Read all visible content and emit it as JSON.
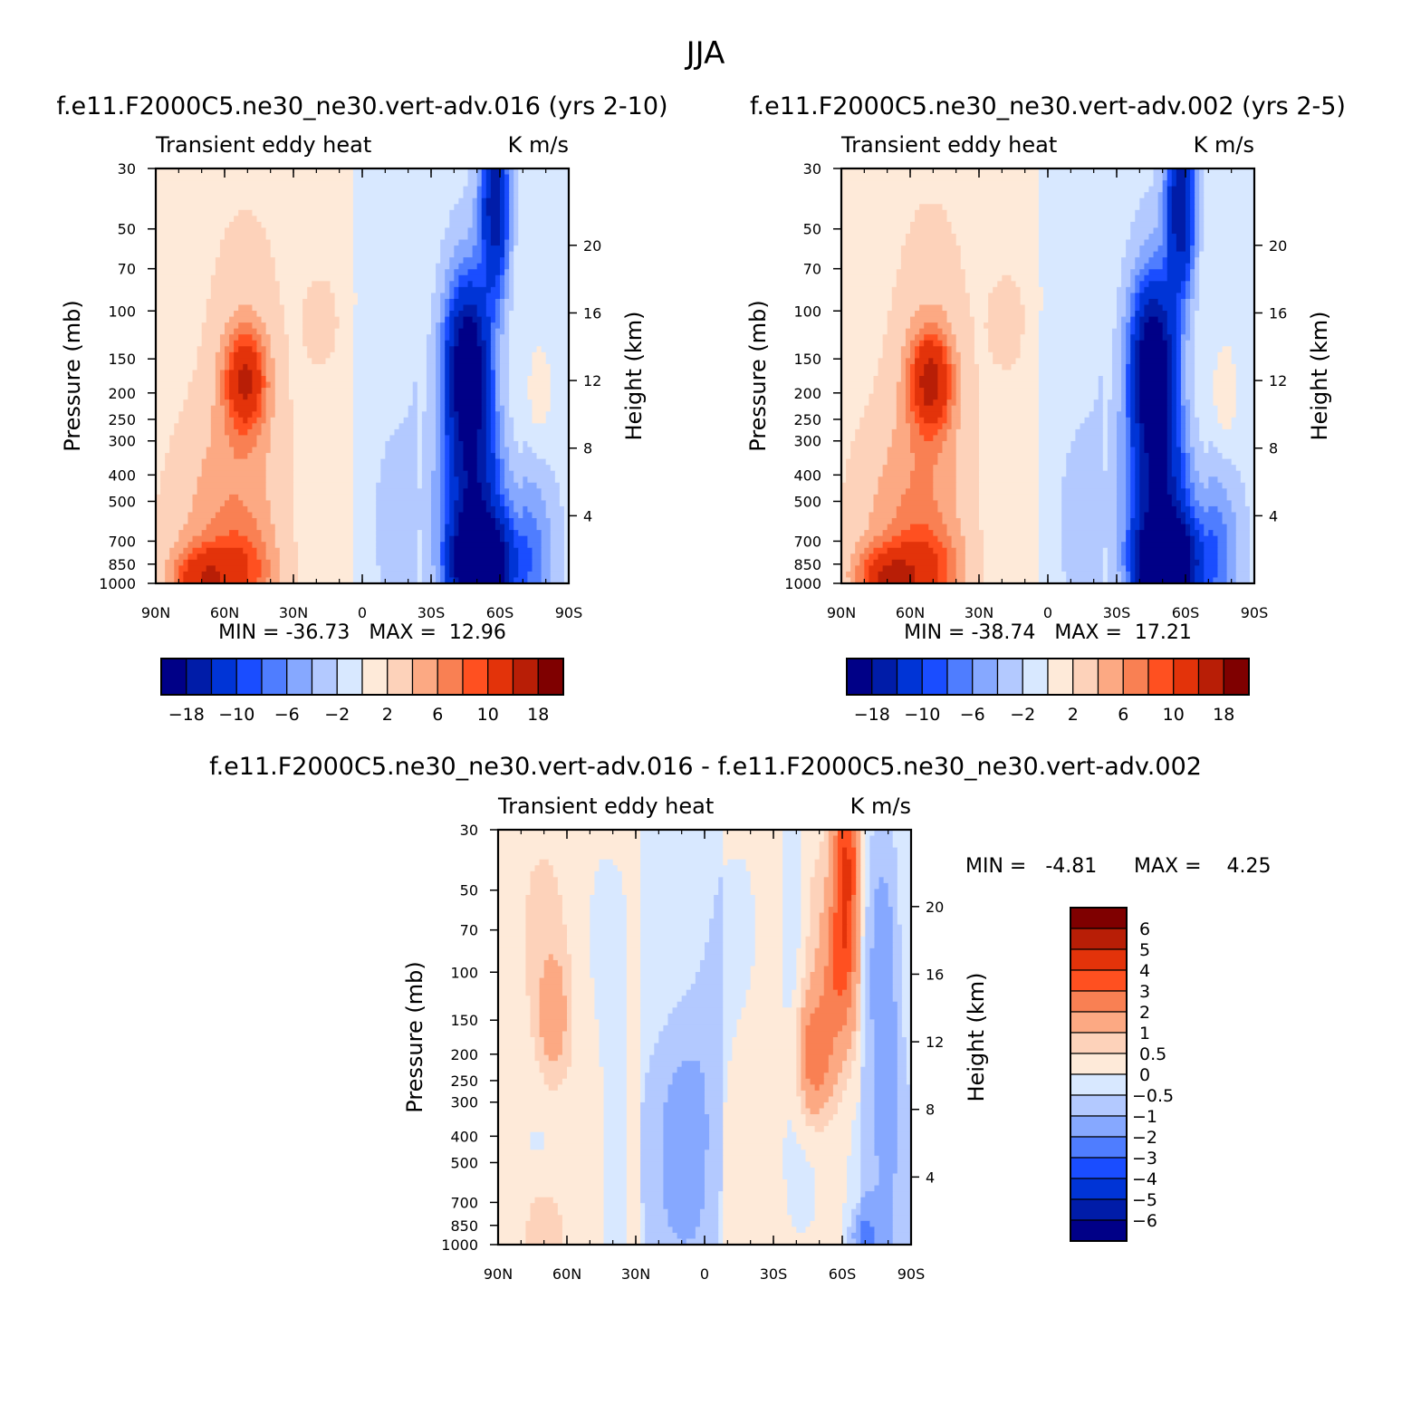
{
  "figure": {
    "season": "JJA",
    "units": "K m/s",
    "variable_label": "Transient eddy heat",
    "ylabel": "Pressure (mb)",
    "y2label": "Height (km)"
  },
  "colors": {
    "abs_palette": [
      "#000087",
      "#001ca8",
      "#0034d6",
      "#1a4dff",
      "#4f7dff",
      "#86a8ff",
      "#b3c9ff",
      "#d8e8ff",
      "#feead9",
      "#fdd2ba",
      "#fca983",
      "#f98053",
      "#ff5020",
      "#e3330a",
      "#b81e06",
      "#7f0000"
    ],
    "diff_palette": [
      "#000087",
      "#001ca8",
      "#0034d6",
      "#1a4dff",
      "#4f7dff",
      "#86a8ff",
      "#b3c9ff",
      "#d8e8ff",
      "#feead9",
      "#fdd2ba",
      "#fca983",
      "#f98053",
      "#ff5020",
      "#e3330a",
      "#b81e06",
      "#7f0000"
    ]
  },
  "chart_data": [
    {
      "type": "heatmap",
      "id": "panel1",
      "title": "f.e11.F2000C5.ne30_ne30.vert-adv.016 (yrs 2-10)",
      "left_label": "Transient eddy heat",
      "right_label": "K m/s",
      "ylabel": "Pressure (mb)",
      "y2label": "Height (km)",
      "x_ticks": [
        "90N",
        "60N",
        "30N",
        "0",
        "30S",
        "60S",
        "90S"
      ],
      "y_ticks": [
        30,
        50,
        70,
        100,
        150,
        200,
        250,
        300,
        400,
        500,
        700,
        850,
        1000
      ],
      "y2_ticks": [
        4,
        8,
        12,
        16,
        20
      ],
      "xlim": [
        90,
        -90
      ],
      "ylim": [
        1000,
        30
      ],
      "y_scale": "log",
      "stats": "MIN = -36.73   MAX =  12.96",
      "min": -36.73,
      "max": 12.96,
      "levels": [
        -30,
        -18,
        -14,
        -10,
        -8,
        -6,
        -4,
        -2,
        0,
        2,
        4,
        6,
        8,
        10,
        14,
        18,
        30
      ],
      "colorbar_labels": [
        "-18",
        "-10",
        "-6",
        "-2",
        "2",
        "6",
        "10",
        "18"
      ]
    },
    {
      "type": "heatmap",
      "id": "panel2",
      "title": "f.e11.F2000C5.ne30_ne30.vert-adv.002 (yrs 2-5)",
      "left_label": "Transient eddy heat",
      "right_label": "K m/s",
      "ylabel": "Pressure (mb)",
      "y2label": "Height (km)",
      "x_ticks": [
        "90N",
        "60N",
        "30N",
        "0",
        "30S",
        "60S",
        "90S"
      ],
      "y_ticks": [
        30,
        50,
        70,
        100,
        150,
        200,
        250,
        300,
        400,
        500,
        700,
        850,
        1000
      ],
      "y2_ticks": [
        4,
        8,
        12,
        16,
        20
      ],
      "xlim": [
        90,
        -90
      ],
      "ylim": [
        1000,
        30
      ],
      "y_scale": "log",
      "stats": "MIN = -38.74   MAX =  17.21",
      "min": -38.74,
      "max": 17.21,
      "levels": [
        -30,
        -18,
        -14,
        -10,
        -8,
        -6,
        -4,
        -2,
        0,
        2,
        4,
        6,
        8,
        10,
        14,
        18,
        30
      ],
      "colorbar_labels": [
        "-18",
        "-10",
        "-6",
        "-2",
        "2",
        "6",
        "10",
        "18"
      ]
    },
    {
      "type": "heatmap",
      "id": "panel3",
      "title": "f.e11.F2000C5.ne30_ne30.vert-adv.016 - f.e11.F2000C5.ne30_ne30.vert-adv.002",
      "left_label": "Transient eddy heat",
      "right_label": "K m/s",
      "ylabel": "Pressure (mb)",
      "y2label": "Height (km)",
      "x_ticks": [
        "90N",
        "60N",
        "30N",
        "0",
        "30S",
        "60S",
        "90S"
      ],
      "y_ticks": [
        30,
        50,
        70,
        100,
        150,
        200,
        250,
        300,
        400,
        500,
        700,
        850,
        1000
      ],
      "y2_ticks": [
        4,
        8,
        12,
        16,
        20
      ],
      "xlim": [
        90,
        -90
      ],
      "ylim": [
        1000,
        30
      ],
      "y_scale": "log",
      "stats_min": "MIN =   -4.81",
      "stats_max": "MAX =    4.25",
      "min": -4.81,
      "max": 4.25,
      "levels": [
        -8,
        -6,
        -5,
        -4,
        -3,
        -2,
        -1,
        -0.5,
        0,
        0.5,
        1,
        2,
        3,
        4,
        5,
        6,
        8
      ],
      "colorbar_labels": [
        "6",
        "5",
        "4",
        "3",
        "2",
        "1",
        "0.5",
        "0",
        "-0.5",
        "-1",
        "-2",
        "-3",
        "-4",
        "-5",
        "-6"
      ]
    }
  ]
}
